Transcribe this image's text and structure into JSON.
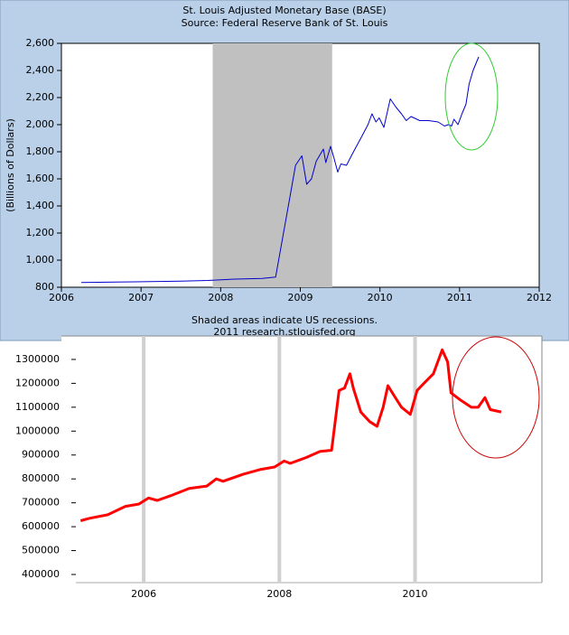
{
  "chart_data": [
    {
      "type": "line",
      "title": "St. Louis Adjusted Monetary Base (BASE)",
      "subtitle": "Source: Federal Reserve Bank of St. Louis",
      "y_label": "(Billions of Dollars)",
      "footer": [
        "Shaded areas indicate US recessions.",
        "2011 research.stlouisfed.org"
      ],
      "recessions": [
        [
          2007.9,
          2009.4
        ]
      ],
      "recession_color": "#c0c0c0",
      "x": [
        2006.25,
        2006.93,
        2007.5,
        2007.84,
        2008.18,
        2008.52,
        2008.69,
        2008.88,
        2008.94,
        2009.02,
        2009.08,
        2009.14,
        2009.2,
        2009.29,
        2009.32,
        2009.38,
        2009.42,
        2009.47,
        2009.51,
        2009.58,
        2009.65,
        2009.76,
        2009.85,
        2009.9,
        2009.95,
        2009.99,
        2010.05,
        2010.08,
        2010.13,
        2010.2,
        2010.27,
        2010.33,
        2010.39,
        2010.5,
        2010.61,
        2010.73,
        2010.81,
        2010.86,
        2010.9,
        2010.93,
        2010.98,
        2011.03,
        2011.08,
        2011.12,
        2011.17,
        2011.24
      ],
      "series": [
        {
          "color": "#0000cc",
          "values": [
            835,
            840,
            845,
            850,
            860,
            865,
            875,
            1500,
            1700,
            1770,
            1560,
            1600,
            1730,
            1820,
            1720,
            1840,
            1760,
            1650,
            1710,
            1700,
            1780,
            1900,
            2000,
            2080,
            2020,
            2050,
            1980,
            2060,
            2190,
            2130,
            2080,
            2030,
            2060,
            2030,
            2030,
            2020,
            1990,
            2000,
            1990,
            2040,
            2000,
            2080,
            2150,
            2300,
            2400,
            2500
          ]
        }
      ],
      "xlim": [
        2006,
        2012
      ],
      "xticks": [
        2006,
        2007,
        2008,
        2009,
        2010,
        2011,
        2012
      ],
      "ylim": [
        800,
        2600
      ],
      "yticks": [
        800,
        {
          "value": 1000,
          "label": "1,000"
        },
        {
          "value": 1200,
          "label": "1,200"
        },
        {
          "value": 1400,
          "label": "1,400"
        },
        {
          "value": 1600,
          "label": "1,600"
        },
        {
          "value": 1800,
          "label": "1,800"
        },
        {
          "value": 2000,
          "label": "2,000"
        },
        {
          "value": 2200,
          "label": "2,200"
        },
        {
          "value": 2400,
          "label": "2,400"
        },
        {
          "value": 2600,
          "label": "2,600"
        }
      ],
      "grid": false
    },
    {
      "type": "line",
      "x": [
        2005.07,
        2005.2,
        2005.47,
        2005.73,
        2005.93,
        2006.07,
        2006.2,
        2006.4,
        2006.67,
        2006.93,
        2007.07,
        2007.17,
        2007.47,
        2007.73,
        2007.93,
        2008.07,
        2008.16,
        2008.4,
        2008.6,
        2008.77,
        2008.88,
        2008.96,
        2009.04,
        2009.09,
        2009.2,
        2009.33,
        2009.44,
        2009.53,
        2009.6,
        2009.71,
        2009.8,
        2009.93,
        2010.03,
        2010.13,
        2010.27,
        2010.4,
        2010.48,
        2010.53,
        2010.67,
        2010.83,
        2010.93,
        2011.03,
        2011.11,
        2011.27
      ],
      "series": [
        {
          "color": "#ff0000",
          "values": [
            625000,
            635000,
            650000,
            685000,
            695000,
            720000,
            710000,
            730000,
            760000,
            770000,
            800000,
            790000,
            820000,
            840000,
            850000,
            875000,
            865000,
            890000,
            915000,
            920000,
            1170000,
            1180000,
            1240000,
            1180000,
            1080000,
            1040000,
            1020000,
            1100000,
            1190000,
            1140000,
            1100000,
            1070000,
            1170000,
            1200000,
            1240000,
            1340000,
            1290000,
            1160000,
            1130000,
            1100000,
            1100000,
            1140000,
            1090000,
            1080000
          ]
        }
      ],
      "xlim": [
        2005,
        2011.87
      ],
      "xticks": [
        {
          "value": 2006,
          "label": "2006"
        },
        {
          "value": 2008,
          "label": "2008"
        },
        {
          "value": 2010,
          "label": "2010"
        }
      ],
      "ylim": [
        366000,
        1398000
      ],
      "yticks": [
        400000,
        500000,
        600000,
        700000,
        800000,
        900000,
        1000000,
        1100000,
        1200000,
        1300000
      ],
      "grid": true,
      "grid_axis": "x",
      "grid_color": "#d0d0d0"
    }
  ]
}
